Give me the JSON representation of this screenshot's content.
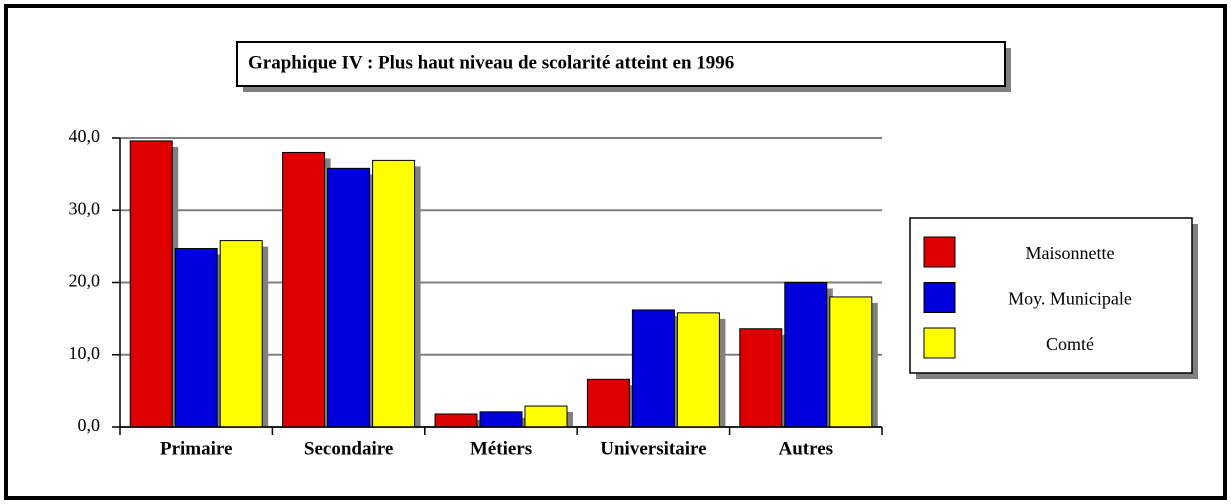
{
  "chart_data": {
    "type": "bar",
    "title": "Graphique IV : Plus haut niveau de scolarité atteint en 1996",
    "categories": [
      "Primaire",
      "Secondaire",
      "Métiers",
      "Universitaire",
      "Autres"
    ],
    "series": [
      {
        "name": "Maisonnette",
        "color": "#dd0000",
        "values": [
          39.6,
          38.0,
          1.8,
          6.6,
          13.6
        ]
      },
      {
        "name": "Moy. Municipale",
        "color": "#0000dd",
        "values": [
          24.7,
          35.8,
          2.1,
          16.2,
          20.0
        ]
      },
      {
        "name": "Comté",
        "color": "#ffff00",
        "values": [
          25.8,
          36.9,
          2.9,
          15.8,
          18.0
        ]
      }
    ],
    "ylim": [
      0,
      40
    ],
    "yticks": [
      {
        "value": 0,
        "label": "0,0"
      },
      {
        "value": 10,
        "label": "10,0"
      },
      {
        "value": 20,
        "label": "20,0"
      },
      {
        "value": 30,
        "label": "30,0"
      },
      {
        "value": 40,
        "label": "40,0"
      }
    ],
    "grid": true
  }
}
